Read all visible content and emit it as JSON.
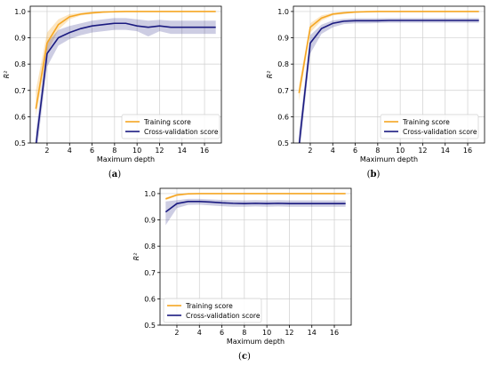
{
  "figure": {
    "captions": [
      "a",
      "b",
      "c"
    ]
  },
  "chart_data": [
    {
      "type": "line",
      "panel": "a",
      "xlabel": "Maximum depth",
      "ylabel": "R²",
      "xlim": [
        0.5,
        17.5
      ],
      "ylim": [
        0.5,
        1.02
      ],
      "xticks": [
        2,
        4,
        6,
        8,
        10,
        12,
        14,
        16
      ],
      "yticks": [
        0.5,
        0.6,
        0.7,
        0.8,
        0.9,
        1.0
      ],
      "ytick_labels": [
        "0.5",
        "0.6",
        "0.7",
        "0.8",
        "0.9",
        "1.0"
      ],
      "grid": true,
      "legend_position": "bottom-right",
      "x": [
        1,
        2,
        3,
        4,
        5,
        6,
        7,
        8,
        9,
        10,
        11,
        12,
        13,
        14,
        15,
        16,
        17
      ],
      "series": [
        {
          "name": "Training score",
          "color": "#f5a623",
          "values": [
            0.63,
            0.88,
            0.95,
            0.98,
            0.99,
            0.995,
            0.998,
            0.999,
            1.0,
            1.0,
            1.0,
            1.0,
            1.0,
            1.0,
            1.0,
            1.0,
            1.0
          ],
          "lower": [
            0.6,
            0.84,
            0.93,
            0.97,
            0.985,
            0.99,
            0.995,
            0.998,
            0.999,
            1.0,
            1.0,
            1.0,
            1.0,
            1.0,
            1.0,
            1.0,
            1.0
          ],
          "upper": [
            0.7,
            0.92,
            0.97,
            0.99,
            0.995,
            0.999,
            1.0,
            1.0,
            1.0,
            1.0,
            1.0,
            1.0,
            1.0,
            1.0,
            1.0,
            1.0,
            1.0
          ]
        },
        {
          "name": "Cross-validation score",
          "color": "#1a1a80",
          "values": [
            0.49,
            0.84,
            0.9,
            0.92,
            0.935,
            0.945,
            0.95,
            0.955,
            0.955,
            0.945,
            0.94,
            0.945,
            0.94,
            0.94,
            0.94,
            0.94,
            0.94
          ],
          "lower": [
            0.44,
            0.79,
            0.87,
            0.895,
            0.91,
            0.92,
            0.925,
            0.93,
            0.93,
            0.925,
            0.905,
            0.925,
            0.915,
            0.915,
            0.915,
            0.915,
            0.915
          ],
          "upper": [
            0.54,
            0.88,
            0.93,
            0.945,
            0.955,
            0.965,
            0.97,
            0.975,
            0.975,
            0.97,
            0.965,
            0.968,
            0.965,
            0.965,
            0.965,
            0.965,
            0.965
          ]
        }
      ]
    },
    {
      "type": "line",
      "panel": "b",
      "xlabel": "Maximum depth",
      "ylabel": "R²",
      "xlim": [
        0.5,
        17.5
      ],
      "ylim": [
        0.5,
        1.02
      ],
      "xticks": [
        2,
        4,
        6,
        8,
        10,
        12,
        14,
        16
      ],
      "yticks": [
        0.5,
        0.6,
        0.7,
        0.8,
        0.9,
        1.0
      ],
      "ytick_labels": [
        "0.5",
        "0.6",
        "0.7",
        "0.8",
        "0.9",
        "1.0"
      ],
      "grid": true,
      "legend_position": "bottom-right",
      "x": [
        1,
        2,
        3,
        4,
        5,
        6,
        7,
        8,
        9,
        10,
        11,
        12,
        13,
        14,
        15,
        16,
        17
      ],
      "series": [
        {
          "name": "Training score",
          "color": "#f5a623",
          "values": [
            0.69,
            0.94,
            0.975,
            0.99,
            0.995,
            0.998,
            0.999,
            1.0,
            1.0,
            1.0,
            1.0,
            1.0,
            1.0,
            1.0,
            1.0,
            1.0,
            1.0
          ],
          "lower": [
            0.66,
            0.92,
            0.965,
            0.985,
            0.99,
            0.995,
            0.998,
            0.999,
            1.0,
            1.0,
            1.0,
            1.0,
            1.0,
            1.0,
            1.0,
            1.0,
            1.0
          ],
          "upper": [
            0.72,
            0.955,
            0.985,
            0.995,
            0.998,
            1.0,
            1.0,
            1.0,
            1.0,
            1.0,
            1.0,
            1.0,
            1.0,
            1.0,
            1.0,
            1.0,
            1.0
          ]
        },
        {
          "name": "Cross-validation score",
          "color": "#1a1a80",
          "values": [
            0.49,
            0.88,
            0.935,
            0.955,
            0.963,
            0.965,
            0.965,
            0.965,
            0.966,
            0.966,
            0.966,
            0.966,
            0.966,
            0.966,
            0.966,
            0.966,
            0.966
          ],
          "lower": [
            0.44,
            0.84,
            0.915,
            0.94,
            0.952,
            0.955,
            0.955,
            0.956,
            0.957,
            0.957,
            0.957,
            0.957,
            0.957,
            0.957,
            0.957,
            0.957,
            0.957
          ],
          "upper": [
            0.54,
            0.91,
            0.95,
            0.966,
            0.972,
            0.974,
            0.974,
            0.974,
            0.975,
            0.975,
            0.975,
            0.975,
            0.975,
            0.975,
            0.975,
            0.975,
            0.975
          ]
        }
      ]
    },
    {
      "type": "line",
      "panel": "c",
      "xlabel": "Maximum depth",
      "ylabel": "R²",
      "xlim": [
        0.5,
        17.5
      ],
      "ylim": [
        0.5,
        1.02
      ],
      "xticks": [
        2,
        4,
        6,
        8,
        10,
        12,
        14,
        16
      ],
      "yticks": [
        0.5,
        0.6,
        0.7,
        0.8,
        0.9,
        1.0
      ],
      "ytick_labels": [
        "0.5",
        "0.6",
        "0.7",
        "0.8",
        "0.9",
        "1.0"
      ],
      "grid": true,
      "legend_position": "bottom-left",
      "x": [
        1,
        2,
        3,
        4,
        5,
        6,
        7,
        8,
        9,
        10,
        11,
        12,
        13,
        14,
        15,
        16,
        17
      ],
      "series": [
        {
          "name": "Training score",
          "color": "#f5a623",
          "values": [
            0.98,
            0.995,
            0.999,
            1.0,
            1.0,
            1.0,
            1.0,
            1.0,
            1.0,
            1.0,
            1.0,
            1.0,
            1.0,
            1.0,
            1.0,
            1.0,
            1.0
          ],
          "lower": [
            0.975,
            0.99,
            0.997,
            0.999,
            1.0,
            1.0,
            1.0,
            1.0,
            1.0,
            1.0,
            1.0,
            1.0,
            1.0,
            1.0,
            1.0,
            1.0,
            1.0
          ],
          "upper": [
            0.985,
            0.998,
            1.0,
            1.0,
            1.0,
            1.0,
            1.0,
            1.0,
            1.0,
            1.0,
            1.0,
            1.0,
            1.0,
            1.0,
            1.0,
            1.0,
            1.0
          ]
        },
        {
          "name": "Cross-validation score",
          "color": "#1a1a80",
          "values": [
            0.93,
            0.962,
            0.97,
            0.97,
            0.968,
            0.965,
            0.963,
            0.962,
            0.963,
            0.962,
            0.963,
            0.962,
            0.962,
            0.962,
            0.962,
            0.962,
            0.962
          ],
          "lower": [
            0.88,
            0.945,
            0.957,
            0.958,
            0.955,
            0.952,
            0.95,
            0.95,
            0.951,
            0.95,
            0.951,
            0.95,
            0.95,
            0.95,
            0.95,
            0.95,
            0.95
          ],
          "upper": [
            0.97,
            0.975,
            0.98,
            0.98,
            0.978,
            0.976,
            0.975,
            0.974,
            0.975,
            0.974,
            0.975,
            0.974,
            0.974,
            0.974,
            0.974,
            0.974,
            0.974
          ]
        }
      ]
    }
  ]
}
